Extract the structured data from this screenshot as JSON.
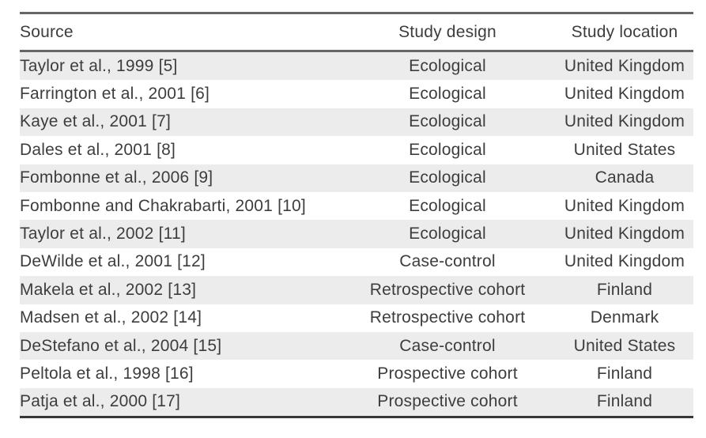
{
  "table": {
    "columns": [
      {
        "key": "source",
        "label": "Source",
        "align": "left"
      },
      {
        "key": "design",
        "label": "Study design",
        "align": "center"
      },
      {
        "key": "location",
        "label": "Study location",
        "align": "center"
      }
    ],
    "rows": [
      {
        "source": "Taylor et al., 1999 [5]",
        "design": "Ecological",
        "location": "United Kingdom"
      },
      {
        "source": "Farrington et al., 2001 [6]",
        "design": "Ecological",
        "location": "United Kingdom"
      },
      {
        "source": "Kaye et al., 2001 [7]",
        "design": "Ecological",
        "location": "United Kingdom"
      },
      {
        "source": "Dales et al., 2001 [8]",
        "design": "Ecological",
        "location": "United States"
      },
      {
        "source": "Fombonne et al., 2006 [9]",
        "design": "Ecological",
        "location": "Canada"
      },
      {
        "source": "Fombonne and Chakrabarti, 2001 [10]",
        "design": "Ecological",
        "location": "United Kingdom"
      },
      {
        "source": "Taylor et al., 2002 [11]",
        "design": "Ecological",
        "location": "United Kingdom"
      },
      {
        "source": "DeWilde et al., 2001 [12]",
        "design": "Case-control",
        "location": "United Kingdom"
      },
      {
        "source": "Makela et al., 2002 [13]",
        "design": "Retrospective cohort",
        "location": "Finland"
      },
      {
        "source": "Madsen et al., 2002 [14]",
        "design": "Retrospective cohort",
        "location": "Denmark"
      },
      {
        "source": "DeStefano et al., 2004 [15]",
        "design": "Case-control",
        "location": "United States"
      },
      {
        "source": "Peltola et al., 1998 [16]",
        "design": "Prospective cohort",
        "location": "Finland"
      },
      {
        "source": "Patja et al., 2000 [17]",
        "design": "Prospective cohort",
        "location": "Finland"
      }
    ],
    "colors": {
      "stripe": "#ececec",
      "rule_top": "#666666",
      "rule_header": "#666666",
      "rule_bottom": "#383838",
      "text": "#3d3d3d",
      "background": "#ffffff"
    }
  }
}
